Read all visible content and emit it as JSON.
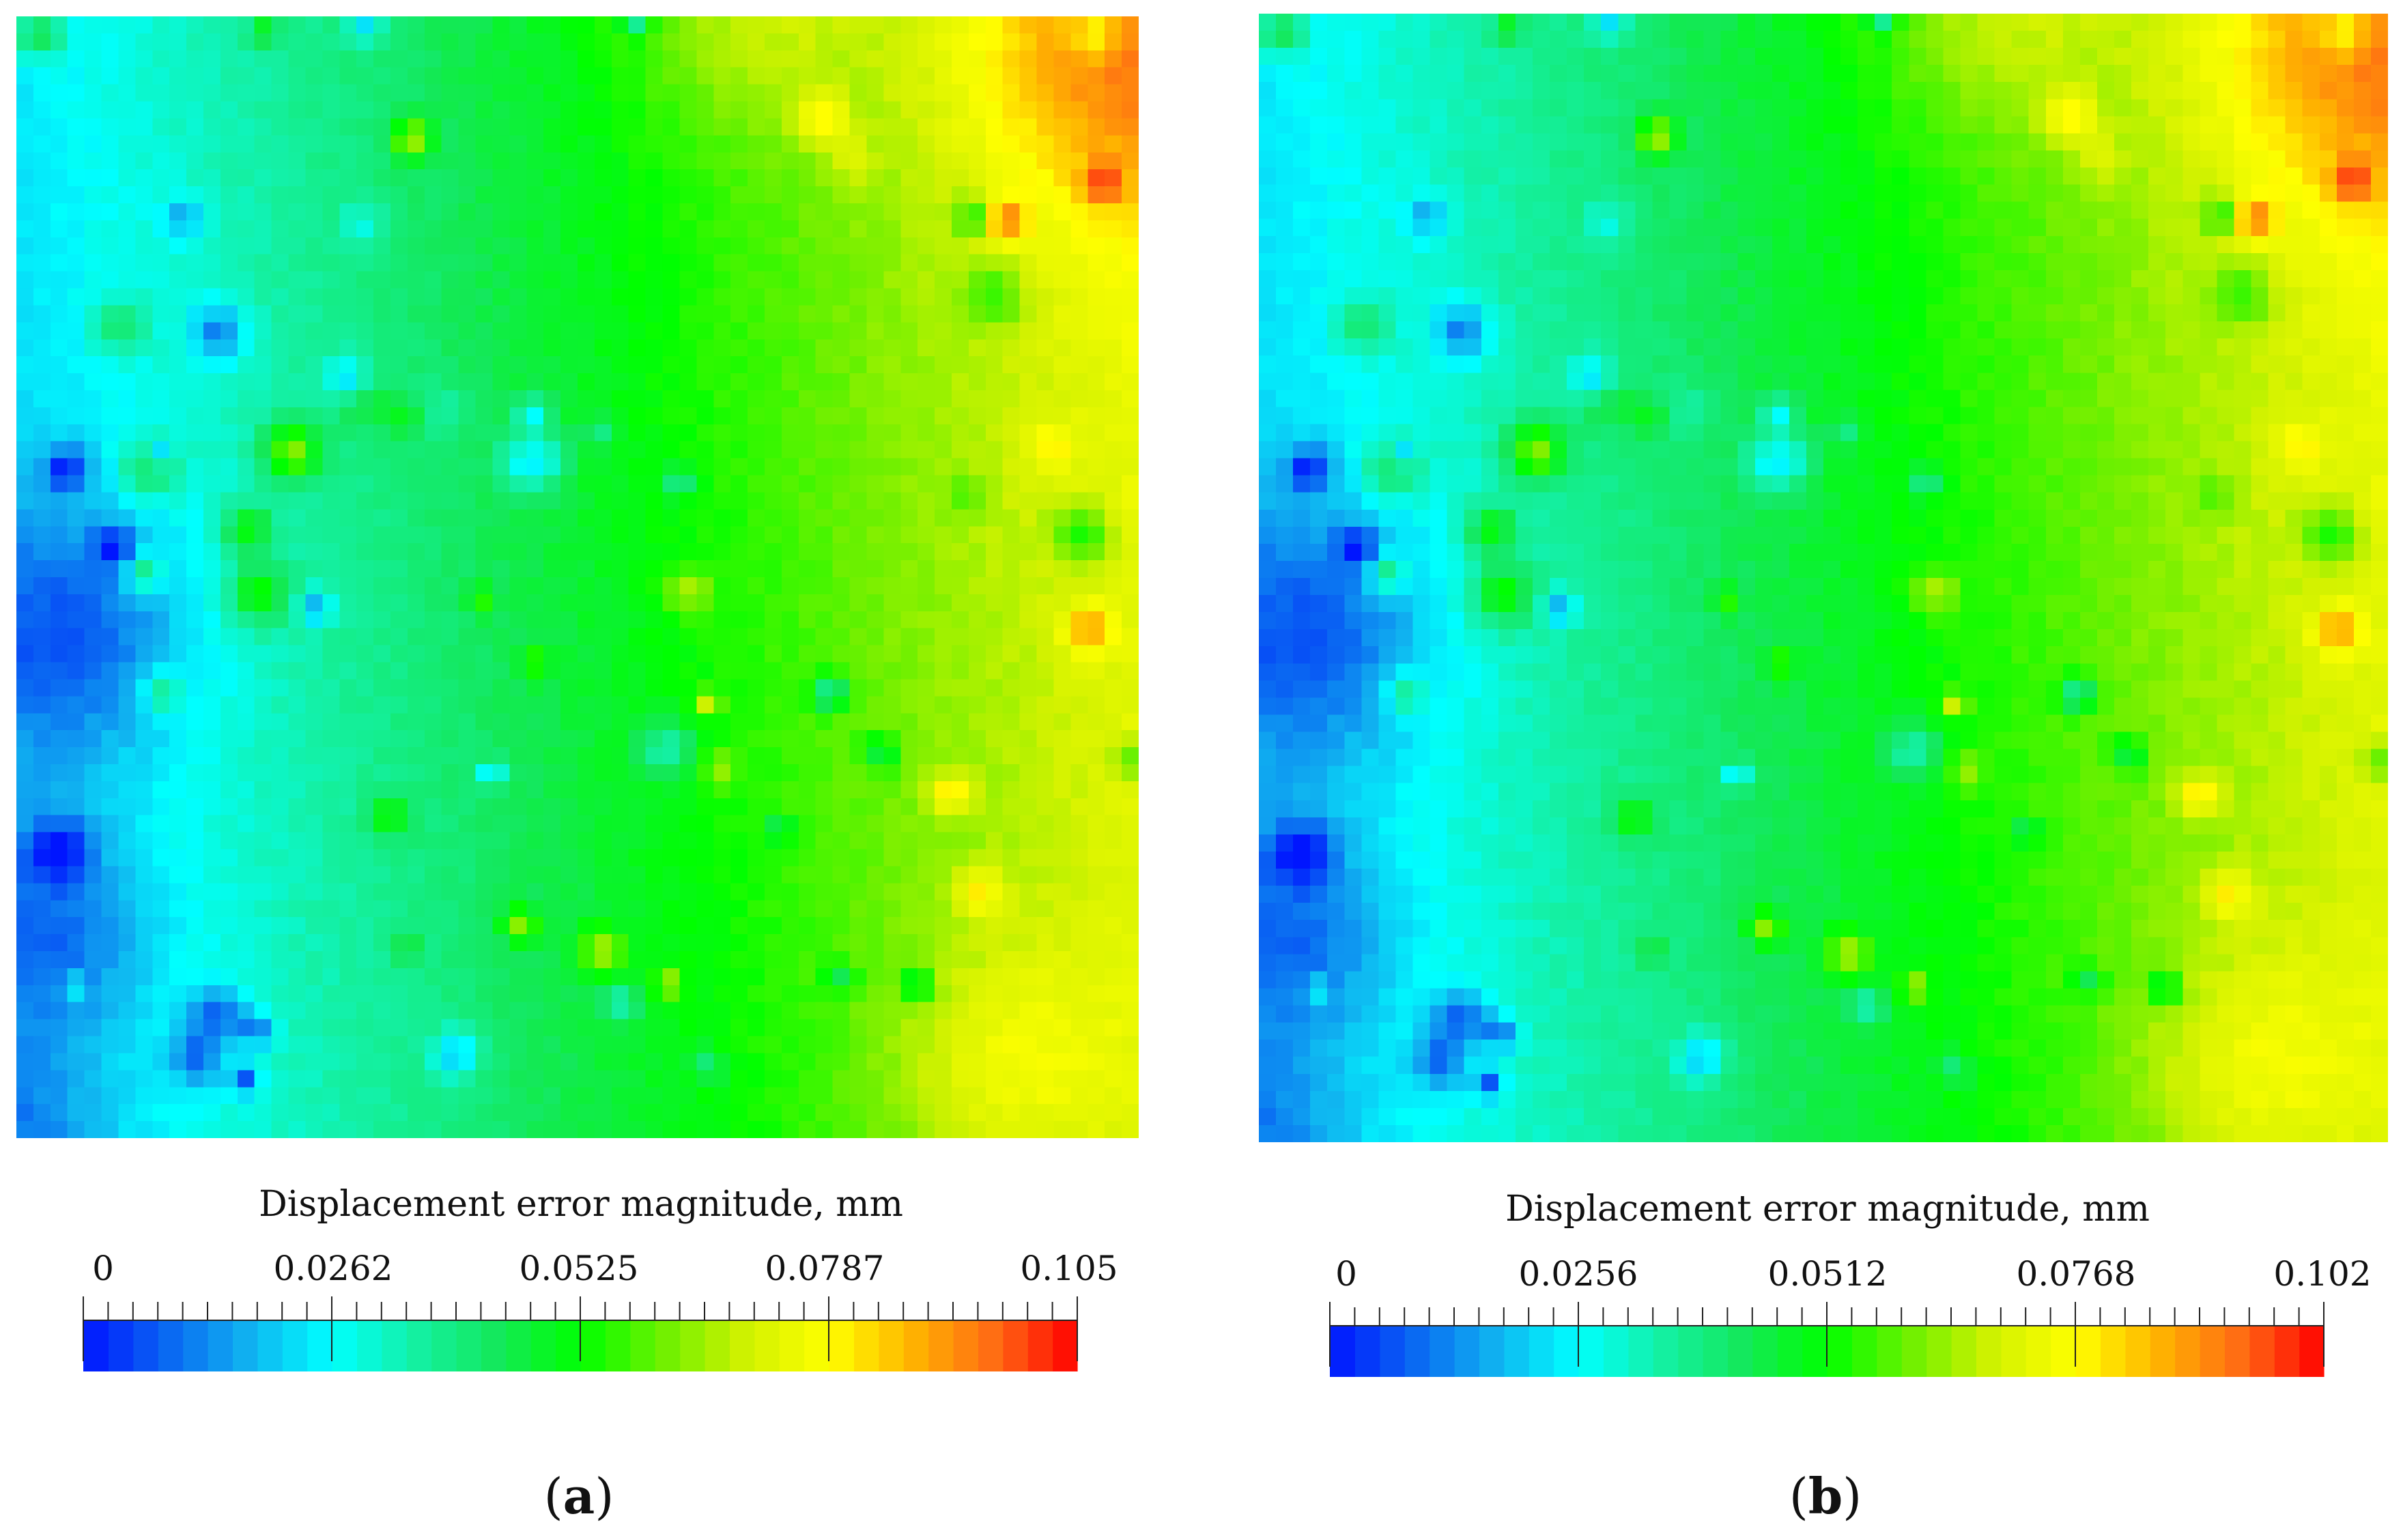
{
  "colormap": {
    "name": "rainbow (jet-like)",
    "stops": [
      "#0015ff",
      "#0a66f2",
      "#10b3f0",
      "#00ffff",
      "#14f0a4",
      "#14e85a",
      "#00ff00",
      "#6ef000",
      "#d2f200",
      "#ffff00",
      "#ffb400",
      "#ff6a14",
      "#ff0000"
    ]
  },
  "panels": [
    {
      "label_text": "(a)",
      "label_bold": "a",
      "colorbar": {
        "title": "Displacement error magnitude, mm",
        "min": 0,
        "max": 0.105,
        "tick_labels": [
          "0",
          "0.0262",
          "0.0525",
          "0.0787",
          "0.105"
        ],
        "color_bands": 40
      }
    },
    {
      "label_text": "(b)",
      "label_bold": "b",
      "colorbar": {
        "title": "Displacement error magnitude, mm",
        "min": 0,
        "max": 0.102,
        "tick_labels": [
          "0",
          "0.0256",
          "0.0512",
          "0.0768",
          "0.102"
        ],
        "color_bands": 40
      }
    }
  ]
}
